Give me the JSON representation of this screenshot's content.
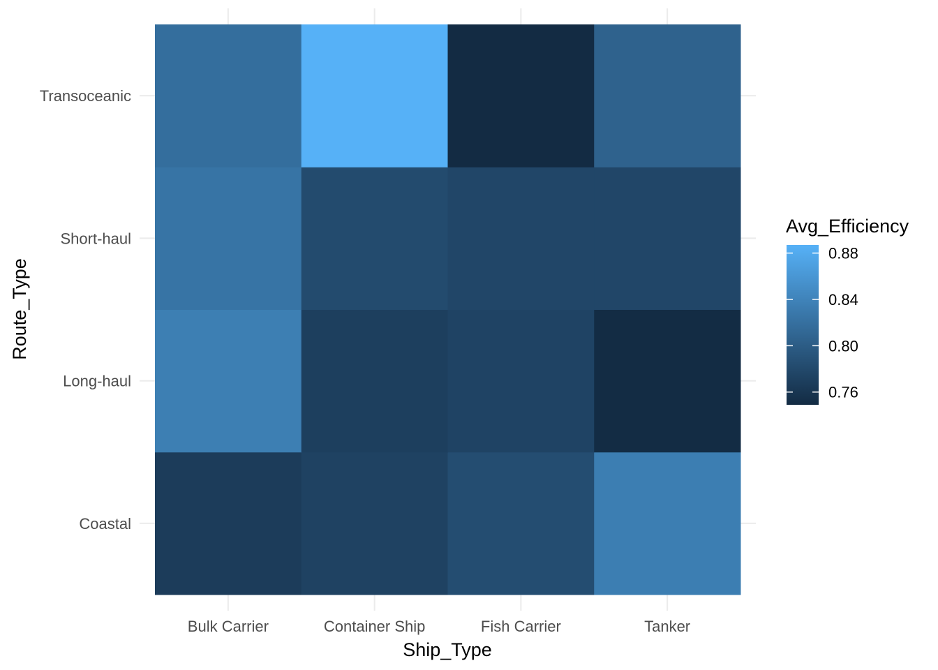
{
  "chart_data": {
    "type": "heatmap",
    "xlabel": "Ship_Type",
    "ylabel": "Route_Type",
    "x_categories": [
      "Bulk Carrier",
      "Container Ship",
      "Fish Carrier",
      "Tanker"
    ],
    "y_categories": [
      "Coastal",
      "Long-haul",
      "Short-haul",
      "Transoceanic"
    ],
    "values": [
      [
        0.767,
        0.773,
        0.784,
        0.834
      ],
      [
        0.835,
        0.77,
        0.774,
        0.75
      ],
      [
        0.824,
        0.782,
        0.777,
        0.777
      ],
      [
        0.818,
        0.887,
        0.749,
        0.806
      ]
    ],
    "legend": {
      "title": "Avg_Efficiency",
      "ticks": [
        0.88,
        0.84,
        0.8,
        0.76
      ],
      "tick_labels": [
        "0.88",
        "0.84",
        "0.80",
        "0.76"
      ],
      "range": [
        0.749,
        0.887
      ],
      "low_color": "#132B43",
      "high_color": "#56B1F7",
      "placement": "right"
    },
    "grid": true
  }
}
